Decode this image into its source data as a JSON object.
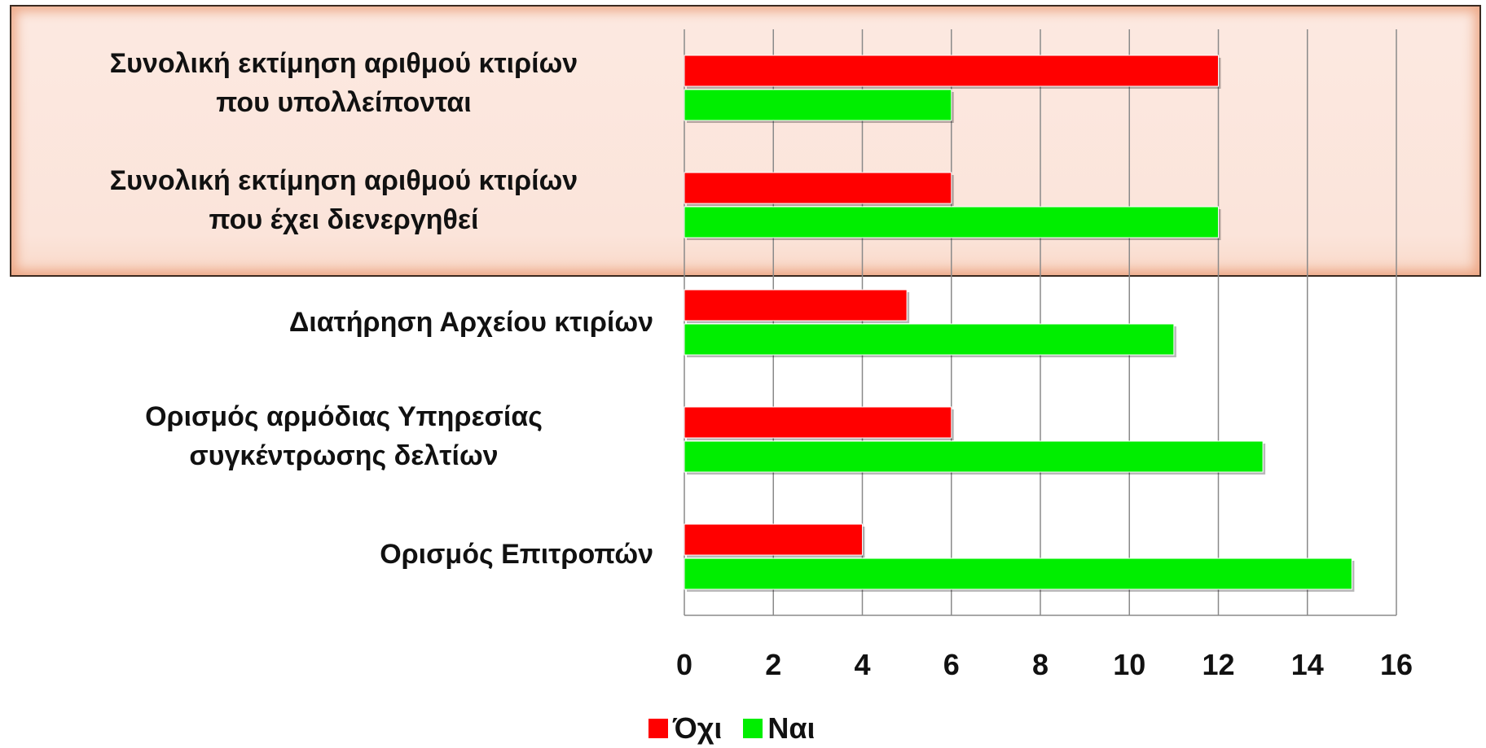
{
  "chart_data": {
    "type": "bar",
    "orientation": "horizontal",
    "categories": [
      "Συνολική εκτίμηση αριθμού κτιρίων\nπου υπολλείπονται",
      "Συνολική εκτίμηση αριθμού κτιρίων\nπου έχει διενεργηθεί",
      "Διατήρηση Αρχείου κτιρίων",
      "Ορισμός αρμόδιας Υπηρεσίας\nσυγκέντρωσης δελτίων",
      "Ορισμός Επιτροπών"
    ],
    "series": [
      {
        "name": "Όχι",
        "color": "#ff0000",
        "values": [
          12,
          6,
          5,
          6,
          4
        ]
      },
      {
        "name": "Ναι",
        "color": "#00ee00",
        "values": [
          6,
          12,
          11,
          13,
          15
        ]
      }
    ],
    "xlim": [
      0,
      16
    ],
    "x_ticks": [
      0,
      2,
      4,
      6,
      8,
      10,
      12,
      14,
      16
    ],
    "grid": true,
    "legend": "bottom"
  }
}
